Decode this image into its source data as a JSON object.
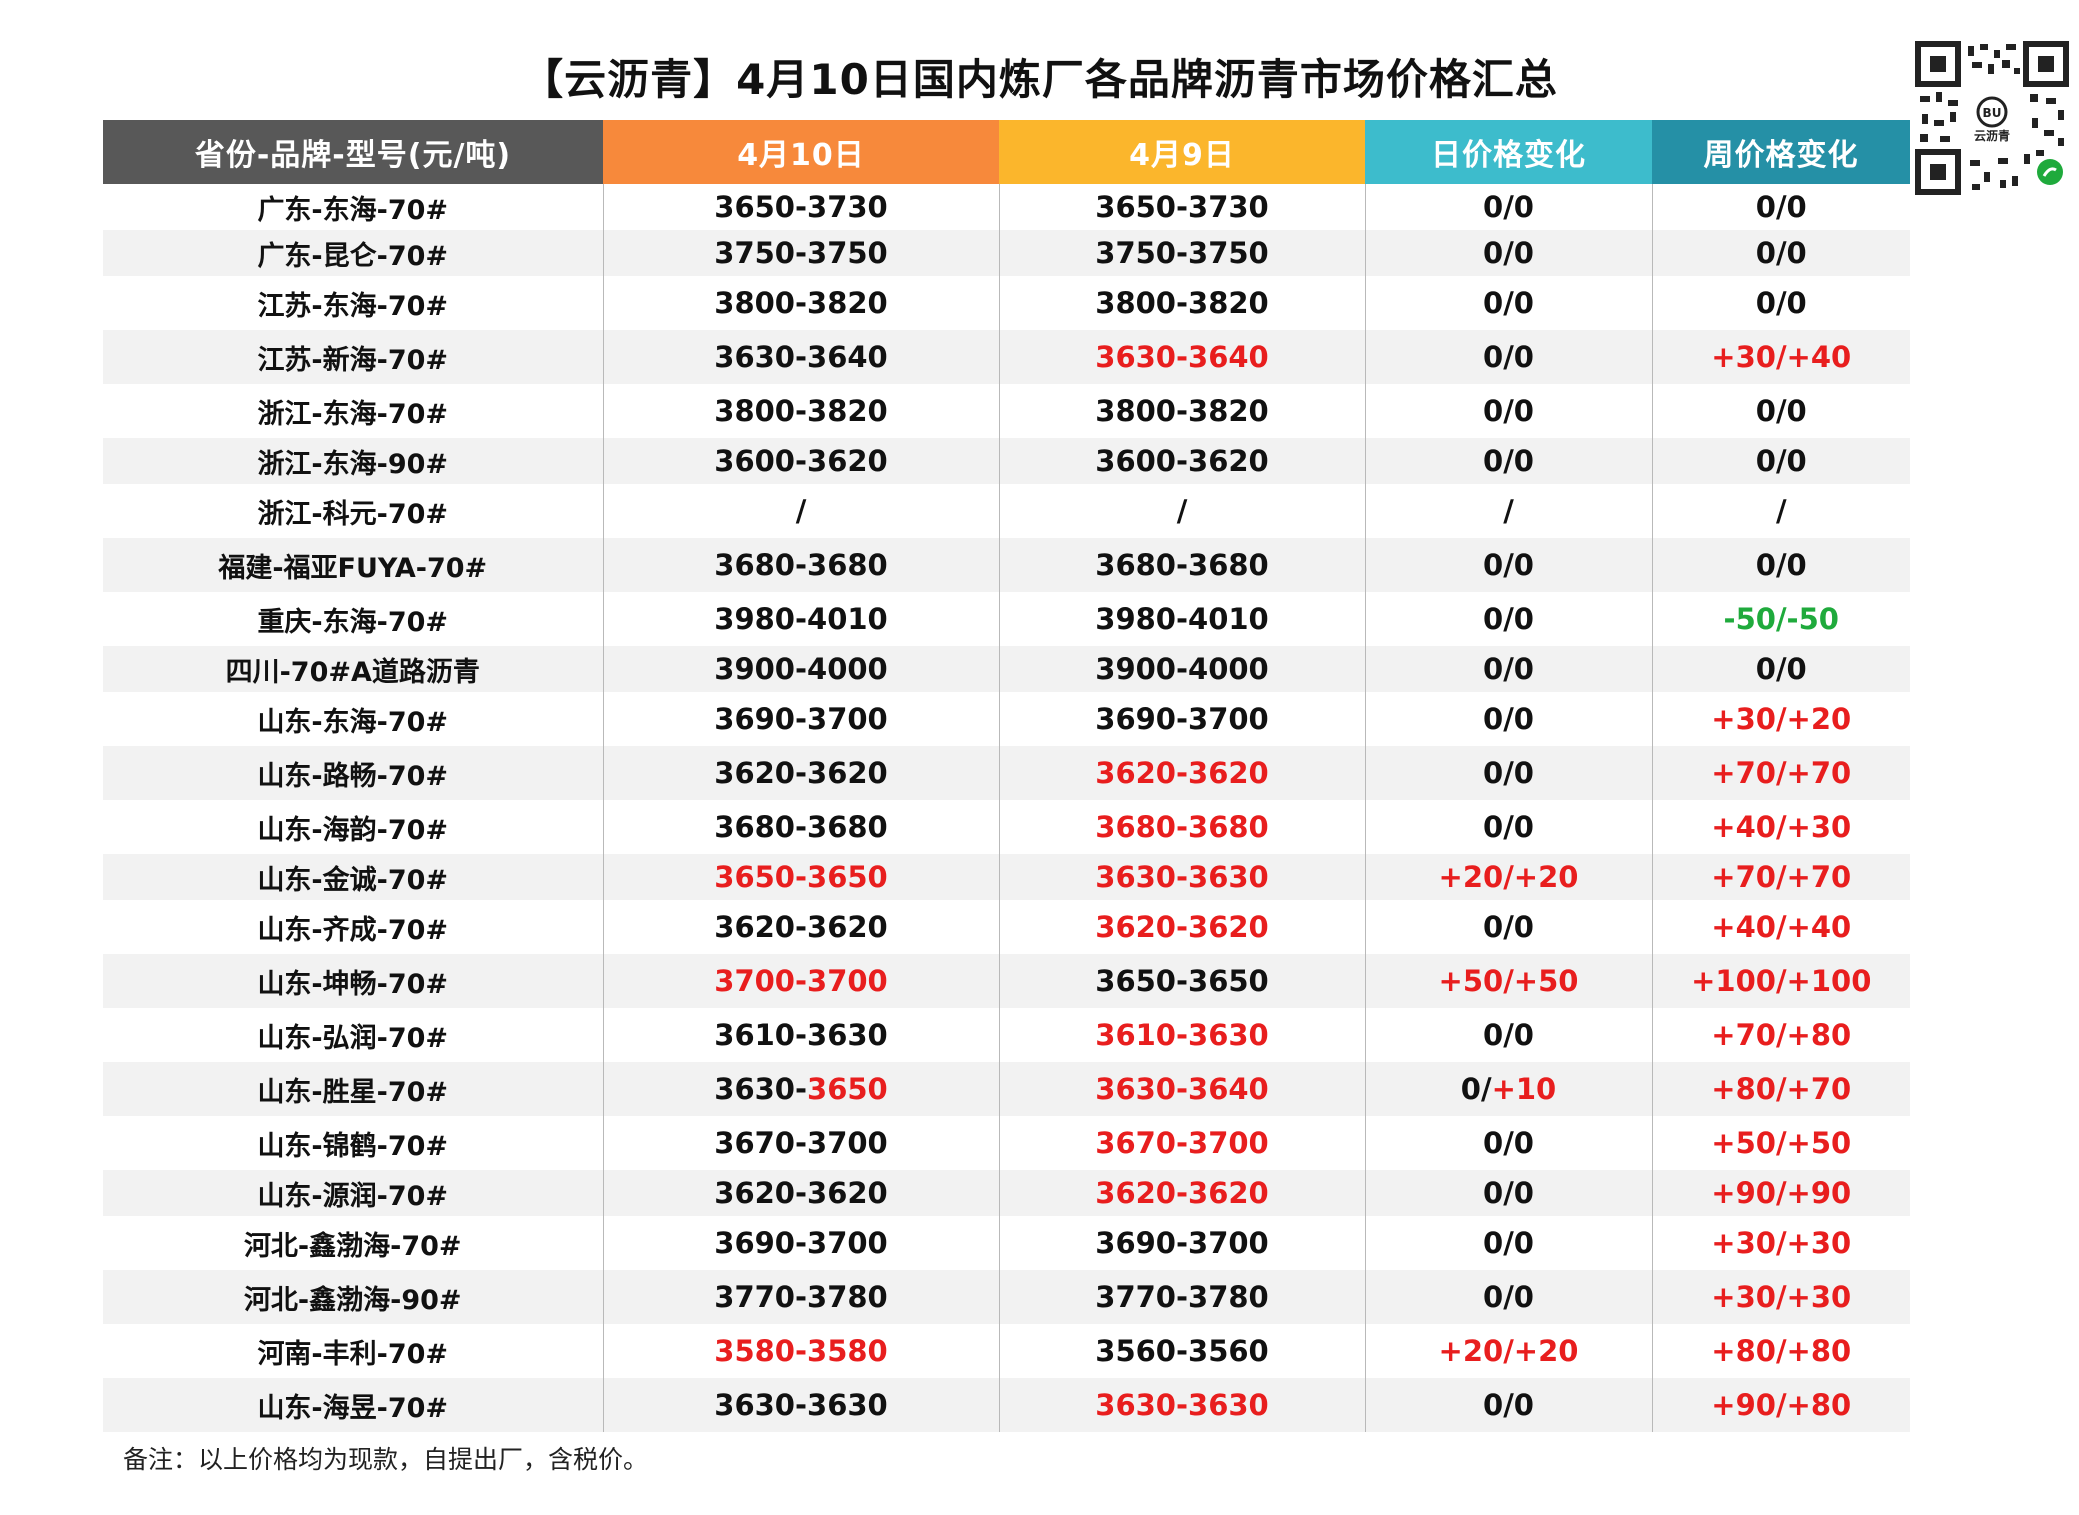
{
  "title": "【云沥青】4月10日国内炼厂各品牌沥青市场价格汇总",
  "qr": {
    "label": "云沥青",
    "logo_text": "BU"
  },
  "colors": {
    "up": "#e81e1e",
    "down": "#1faa3c",
    "normal": "#111111"
  },
  "table": {
    "headers": [
      "省份-品牌-型号(元/吨)",
      "4月10日",
      "4月9日",
      "日价格变化",
      "周价格变化"
    ],
    "rows": [
      [
        [
          "广东-东海-70#"
        ],
        [
          "3650-3730"
        ],
        [
          "3650-3730"
        ],
        [
          "0/0"
        ],
        [
          "0/0"
        ]
      ],
      [
        [
          "广东-昆仑-70#"
        ],
        [
          "3750-3750"
        ],
        [
          "3750-3750"
        ],
        [
          "0/0"
        ],
        [
          "0/0"
        ]
      ],
      [
        [
          "江苏-东海-70#"
        ],
        [
          "3800-3820"
        ],
        [
          "3800-3820"
        ],
        [
          "0/0"
        ],
        [
          "0/0"
        ]
      ],
      [
        [
          "江苏-新海-70#"
        ],
        [
          "3630-3640"
        ],
        [
          "3630-3640",
          "up"
        ],
        [
          "0/0"
        ],
        [
          "+30/+40",
          "up"
        ]
      ],
      [
        [
          "浙江-东海-70#"
        ],
        [
          "3800-3820"
        ],
        [
          "3800-3820"
        ],
        [
          "0/0"
        ],
        [
          "0/0"
        ]
      ],
      [
        [
          "浙江-东海-90#"
        ],
        [
          "3600-3620"
        ],
        [
          "3600-3620"
        ],
        [
          "0/0"
        ],
        [
          "0/0"
        ]
      ],
      [
        [
          "浙江-科元-70#"
        ],
        [
          "/"
        ],
        [
          "/"
        ],
        [
          "/"
        ],
        [
          "/"
        ]
      ],
      [
        [
          "福建-福亚FUYA-70#"
        ],
        [
          "3680-3680"
        ],
        [
          "3680-3680"
        ],
        [
          "0/0"
        ],
        [
          "0/0"
        ]
      ],
      [
        [
          "重庆-东海-70#"
        ],
        [
          "3980-4010"
        ],
        [
          "3980-4010"
        ],
        [
          "0/0"
        ],
        [
          "-50/-50",
          "down"
        ]
      ],
      [
        [
          "四川-70#A道路沥青"
        ],
        [
          "3900-4000"
        ],
        [
          "3900-4000"
        ],
        [
          "0/0"
        ],
        [
          "0/0"
        ]
      ],
      [
        [
          "山东-东海-70#"
        ],
        [
          "3690-3700"
        ],
        [
          "3690-3700"
        ],
        [
          "0/0"
        ],
        [
          "+30/+20",
          "up"
        ]
      ],
      [
        [
          "山东-路畅-70#"
        ],
        [
          "3620-3620"
        ],
        [
          "3620-3620",
          "up"
        ],
        [
          "0/0"
        ],
        [
          "+70/+70",
          "up"
        ]
      ],
      [
        [
          "山东-海韵-70#"
        ],
        [
          "3680-3680"
        ],
        [
          "3680-3680",
          "up"
        ],
        [
          "0/0"
        ],
        [
          "+40/+30",
          "up"
        ]
      ],
      [
        [
          "山东-金诚-70#"
        ],
        [
          "3650-3650",
          "up"
        ],
        [
          "3630-3630",
          "up"
        ],
        [
          "+20/+20",
          "up"
        ],
        [
          "+70/+70",
          "up"
        ]
      ],
      [
        [
          "山东-齐成-70#"
        ],
        [
          "3620-3620"
        ],
        [
          "3620-3620",
          "up"
        ],
        [
          "0/0"
        ],
        [
          "+40/+40",
          "up"
        ]
      ],
      [
        [
          "山东-坤畅-70#"
        ],
        [
          "3700-3700",
          "up"
        ],
        [
          "3650-3650"
        ],
        [
          "+50/+50",
          "up"
        ],
        [
          "+100/+100",
          "up"
        ]
      ],
      [
        [
          "山东-弘润-70#"
        ],
        [
          "3610-3630"
        ],
        [
          "3610-3630",
          "up"
        ],
        [
          "0/0"
        ],
        [
          "+70/+80",
          "up"
        ]
      ],
      [
        [
          "山东-胜星-70#"
        ],
        [
          "3630-",
          "",
          "3650",
          "up"
        ],
        [
          "3630-3640",
          "up"
        ],
        [
          "0/",
          "",
          "+10",
          "up"
        ],
        [
          "+80/+70",
          "up"
        ]
      ],
      [
        [
          "山东-锦鹤-70#"
        ],
        [
          "3670-3700"
        ],
        [
          "3670-3700",
          "up"
        ],
        [
          "0/0"
        ],
        [
          "+50/+50",
          "up"
        ]
      ],
      [
        [
          "山东-源润-70#"
        ],
        [
          "3620-3620"
        ],
        [
          "3620-3620",
          "up"
        ],
        [
          "0/0"
        ],
        [
          "+90/+90",
          "up"
        ]
      ],
      [
        [
          "河北-鑫渤海-70#"
        ],
        [
          "3690-3700"
        ],
        [
          "3690-3700"
        ],
        [
          "0/0"
        ],
        [
          "+30/+30",
          "up"
        ]
      ],
      [
        [
          "河北-鑫渤海-90#"
        ],
        [
          "3770-3780"
        ],
        [
          "3770-3780"
        ],
        [
          "0/0"
        ],
        [
          "+30/+30",
          "up"
        ]
      ],
      [
        [
          "河南-丰利-70#"
        ],
        [
          "3580-3580",
          "up"
        ],
        [
          "3560-3560"
        ],
        [
          "+20/+20",
          "up"
        ],
        [
          "+80/+80",
          "up"
        ]
      ],
      [
        [
          "山东-海昱-70#"
        ],
        [
          "3630-3630"
        ],
        [
          "3630-3630",
          "up"
        ],
        [
          "0/0"
        ],
        [
          "+90/+80",
          "up"
        ]
      ]
    ]
  },
  "note": "备注：以上价格均为现款，自提出厂，含税价。"
}
